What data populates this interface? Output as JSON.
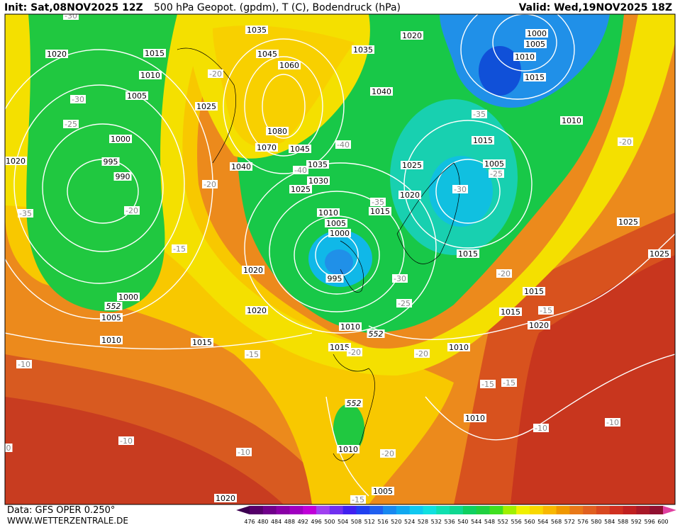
{
  "header": {
    "init": "Init: Sat,08NOV2025 12Z",
    "title": "500 hPa Geopot. (gpdm), T (C), Bodendruck (hPa)",
    "valid": "Valid: Wed,19NOV2025 18Z"
  },
  "footer": {
    "source": "Data: GFS OPER 0.250°",
    "site": "WWW.WETTERZENTRALE.DE"
  },
  "map": {
    "isobar_labels": [
      1020,
      1015,
      1010,
      1005,
      1000,
      995,
      990,
      1020,
      1025,
      1040,
      1035,
      1045,
      1060,
      1080,
      1070,
      1045,
      1035,
      1030,
      1025,
      1035,
      1040,
      1020,
      1000,
      1005,
      1010,
      1015,
      1010,
      1015,
      1005,
      1025,
      1020,
      1015,
      1010,
      1005,
      1000,
      995,
      1015,
      1020,
      1020,
      1000,
      1005,
      1010,
      1015,
      1010,
      1015,
      1010,
      1015,
      1015,
      1020,
      1025,
      1025,
      1010,
      1010,
      1005,
      1020
    ],
    "temperature_labels": [
      -30,
      -30,
      -25,
      -35,
      -20,
      -15,
      -20,
      -20,
      -40,
      -40,
      -35,
      -35,
      -25,
      -30,
      -30,
      -25,
      -20,
      -15,
      -20,
      -15,
      -20,
      -20,
      -15,
      -15,
      -10,
      -10,
      -10,
      -10,
      -10,
      -20,
      -15,
      0
    ],
    "geopotential_labels": [
      552,
      552,
      552
    ]
  },
  "colorbar": {
    "values": [
      476,
      480,
      484,
      488,
      492,
      496,
      500,
      504,
      508,
      512,
      516,
      520,
      524,
      528,
      532,
      536,
      540,
      544,
      548,
      552,
      556,
      560,
      564,
      568,
      572,
      576,
      580,
      584,
      588,
      592,
      596,
      600
    ],
    "colors": [
      "#3c0050",
      "#56006a",
      "#70008a",
      "#8a00a6",
      "#a000c0",
      "#c000d8",
      "#a040f0",
      "#7030f0",
      "#4020f0",
      "#2040f0",
      "#2060f0",
      "#1888f0",
      "#10a8f0",
      "#10c8f0",
      "#10e0e0",
      "#10e0b0",
      "#10d890",
      "#10d060",
      "#20d040",
      "#40e020",
      "#a0f000",
      "#f0f000",
      "#f8d800",
      "#f8b800",
      "#f09800",
      "#e87818",
      "#e06020",
      "#d84820",
      "#d03020",
      "#c02020",
      "#a81828",
      "#901030",
      "#e040a0"
    ]
  }
}
